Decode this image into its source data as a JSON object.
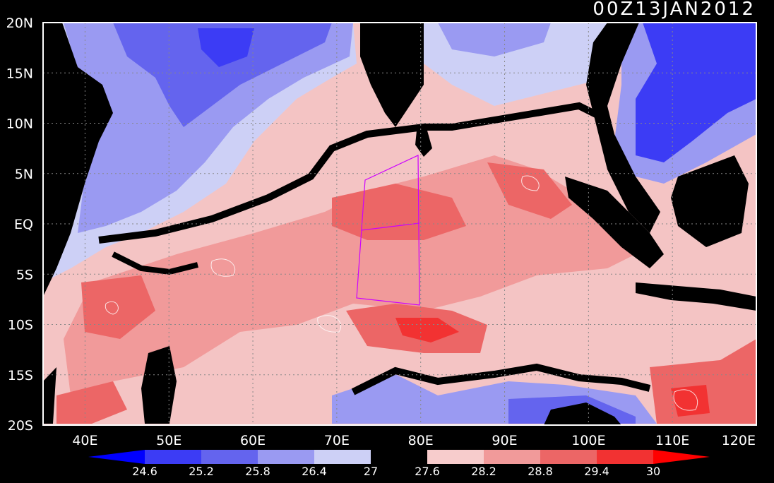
{
  "map": {
    "timestamp": "00Z13JAN2012",
    "lat_ticks": [
      "20N",
      "15N",
      "10N",
      "5N",
      "EQ",
      "5S",
      "10S",
      "15S",
      "20S"
    ],
    "lat_values": [
      20,
      15,
      10,
      5,
      0,
      -5,
      -10,
      -15,
      -20
    ],
    "lon_ticks": [
      "40E",
      "50E",
      "60E",
      "70E",
      "80E",
      "90E",
      "100E",
      "110E",
      "120E"
    ],
    "lon_values": [
      40,
      50,
      60,
      70,
      80,
      90,
      100,
      110,
      120
    ],
    "extent": {
      "lon_min": 35,
      "lon_max": 120,
      "lat_min": -20,
      "lat_max": 20
    },
    "box_color": "#cc00ff",
    "land_color": "#000000"
  },
  "colorbar": {
    "labels": [
      "24.6",
      "25.2",
      "25.8",
      "26.4",
      "27",
      "27.6",
      "28.2",
      "28.8",
      "29.4",
      "30"
    ],
    "colors": [
      "#0000ff",
      "#3c3cf5",
      "#6464ee",
      "#9a9af2",
      "#cdd0f6",
      "#000000",
      "#f7cccc",
      "#f19a9a",
      "#ec6666",
      "#f23232",
      "#ff0000"
    ]
  }
}
